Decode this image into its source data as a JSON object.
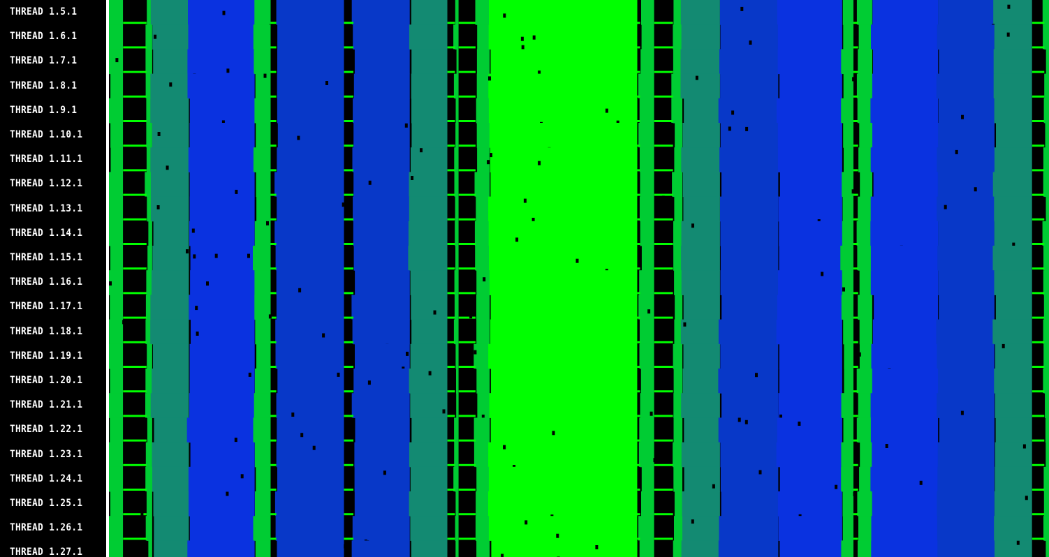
{
  "window": {
    "title": ""
  },
  "threads": [
    "THREAD 1.5.1",
    "THREAD 1.6.1",
    "THREAD 1.7.1",
    "THREAD 1.8.1",
    "THREAD 1.9.1",
    "THREAD 1.10.1",
    "THREAD 1.11.1",
    "THREAD 1.12.1",
    "THREAD 1.13.1",
    "THREAD 1.14.1",
    "THREAD 1.15.1",
    "THREAD 1.16.1",
    "THREAD 1.17.1",
    "THREAD 1.18.1",
    "THREAD 1.19.1",
    "THREAD 1.20.1",
    "THREAD 1.21.1",
    "THREAD 1.22.1",
    "THREAD 1.23.1",
    "THREAD 1.24.1",
    "THREAD 1.25.1",
    "THREAD 1.26.1",
    "THREAD 1.27.1"
  ],
  "state_colors": {
    "idle": "#000000",
    "running_bright": "#00ff00",
    "running": "#00cc33",
    "teal": "#138a72",
    "blue": "#0a32e0",
    "blue_alt": "#0838c8"
  },
  "trace_segments": [
    {
      "state": "running",
      "start": 0.0,
      "end": 0.015
    },
    {
      "state": "idle",
      "start": 0.015,
      "end": 0.04
    },
    {
      "state": "running",
      "start": 0.04,
      "end": 0.046
    },
    {
      "state": "teal",
      "start": 0.046,
      "end": 0.085
    },
    {
      "state": "blue",
      "start": 0.085,
      "end": 0.155
    },
    {
      "state": "running",
      "start": 0.155,
      "end": 0.172
    },
    {
      "state": "idle",
      "start": 0.172,
      "end": 0.178
    },
    {
      "state": "blue_alt",
      "start": 0.178,
      "end": 0.25
    },
    {
      "state": "idle",
      "start": 0.25,
      "end": 0.26
    },
    {
      "state": "blue_alt",
      "start": 0.26,
      "end": 0.32
    },
    {
      "state": "teal",
      "start": 0.32,
      "end": 0.36
    },
    {
      "state": "idle",
      "start": 0.36,
      "end": 0.368
    },
    {
      "state": "running",
      "start": 0.368,
      "end": 0.372
    },
    {
      "state": "idle",
      "start": 0.372,
      "end": 0.39
    },
    {
      "state": "running",
      "start": 0.39,
      "end": 0.405
    },
    {
      "state": "running_bright",
      "start": 0.405,
      "end": 0.562
    },
    {
      "state": "idle",
      "start": 0.562,
      "end": 0.565
    },
    {
      "state": "running",
      "start": 0.565,
      "end": 0.58
    },
    {
      "state": "idle",
      "start": 0.58,
      "end": 0.6
    },
    {
      "state": "running",
      "start": 0.6,
      "end": 0.61
    },
    {
      "state": "teal",
      "start": 0.61,
      "end": 0.65
    },
    {
      "state": "blue_alt",
      "start": 0.65,
      "end": 0.712
    },
    {
      "state": "blue",
      "start": 0.712,
      "end": 0.78
    },
    {
      "state": "running",
      "start": 0.78,
      "end": 0.792
    },
    {
      "state": "idle",
      "start": 0.792,
      "end": 0.797
    },
    {
      "state": "running",
      "start": 0.797,
      "end": 0.812
    },
    {
      "state": "blue",
      "start": 0.812,
      "end": 0.882
    },
    {
      "state": "blue_alt",
      "start": 0.882,
      "end": 0.942
    },
    {
      "state": "teal",
      "start": 0.942,
      "end": 0.982
    },
    {
      "state": "idle",
      "start": 0.982,
      "end": 0.995
    },
    {
      "state": "running",
      "start": 0.995,
      "end": 1.0
    }
  ]
}
